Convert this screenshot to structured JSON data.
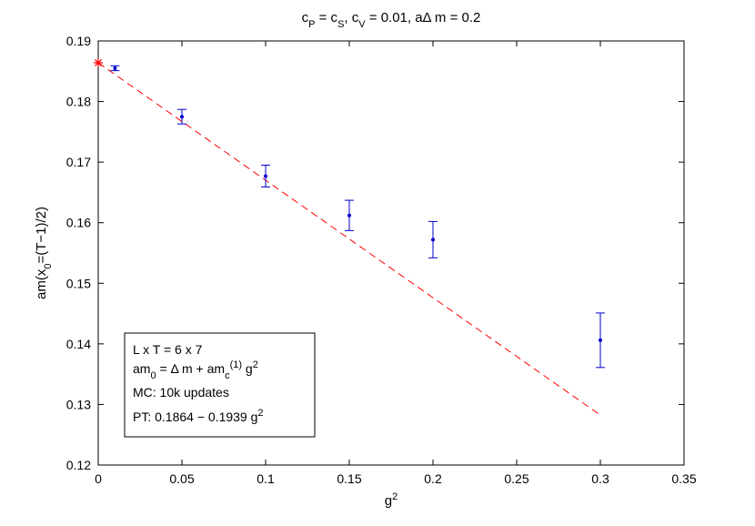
{
  "chart_data": {
    "type": "scatter",
    "title": {
      "parts": [
        {
          "t": "c"
        },
        {
          "t": "P",
          "sub": true
        },
        {
          "t": " = c"
        },
        {
          "t": "S",
          "sub": true
        },
        {
          "t": ", c"
        },
        {
          "t": "V",
          "sub": true
        },
        {
          "t": " = 0.01, aΔ m = 0.2"
        }
      ]
    },
    "xlabel": {
      "parts": [
        {
          "t": "g"
        },
        {
          "t": "2",
          "sup": true
        }
      ]
    },
    "ylabel": {
      "parts": [
        {
          "t": "am(x"
        },
        {
          "t": "0",
          "sub": true
        },
        {
          "t": "=(T−1)/2)"
        }
      ]
    },
    "xlim": [
      0,
      0.35
    ],
    "ylim": [
      0.12,
      0.19
    ],
    "xticks": [
      0,
      0.05,
      0.1,
      0.15,
      0.2,
      0.25,
      0.3,
      0.35
    ],
    "xtick_labels": [
      "0",
      "0.05",
      "0.1",
      "0.15",
      "0.2",
      "0.25",
      "0.3",
      "0.35"
    ],
    "yticks": [
      0.12,
      0.13,
      0.14,
      0.15,
      0.16,
      0.17,
      0.18,
      0.19
    ],
    "ytick_labels": [
      "0.12",
      "0.13",
      "0.14",
      "0.15",
      "0.16",
      "0.17",
      "0.18",
      "0.19"
    ],
    "grid": false,
    "series": [
      {
        "kind": "errorbar",
        "color": "#0000cc",
        "points": [
          {
            "x": 0.01,
            "y": 0.1855,
            "err": 0.0004
          },
          {
            "x": 0.05,
            "y": 0.1775,
            "err": 0.0012
          },
          {
            "x": 0.1,
            "y": 0.1677,
            "err": 0.0018
          },
          {
            "x": 0.15,
            "y": 0.1612,
            "err": 0.0025
          },
          {
            "x": 0.2,
            "y": 0.1572,
            "err": 0.003
          },
          {
            "x": 0.3,
            "y": 0.1406,
            "err": 0.0045
          }
        ]
      },
      {
        "kind": "line",
        "style": "dashed",
        "color": "#ff0000",
        "intercept": 0.1864,
        "slope": -0.1939,
        "x": [
          0,
          0.3
        ]
      },
      {
        "kind": "marker",
        "marker": "star",
        "color": "#ff0000",
        "points": [
          {
            "x": 0,
            "y": 0.1864
          }
        ]
      }
    ],
    "legend": {
      "placement": "bottom-left",
      "lines": [
        {
          "parts": [
            {
              "t": "L x T = 6 x 7"
            }
          ]
        },
        {
          "parts": [
            {
              "t": "am"
            },
            {
              "t": "0",
              "sub": true
            },
            {
              "t": " = Δ m + am"
            },
            {
              "t": "c",
              "sub": true
            },
            {
              "t": "(1)",
              "sup": true
            },
            {
              "t": " g"
            },
            {
              "t": "2",
              "sup": true
            }
          ]
        },
        {
          "parts": [
            {
              "t": "MC: 10k updates"
            }
          ]
        },
        {
          "parts": [
            {
              "t": "PT: 0.1864 − 0.1939 g"
            },
            {
              "t": "2",
              "sup": true
            }
          ]
        }
      ]
    }
  }
}
